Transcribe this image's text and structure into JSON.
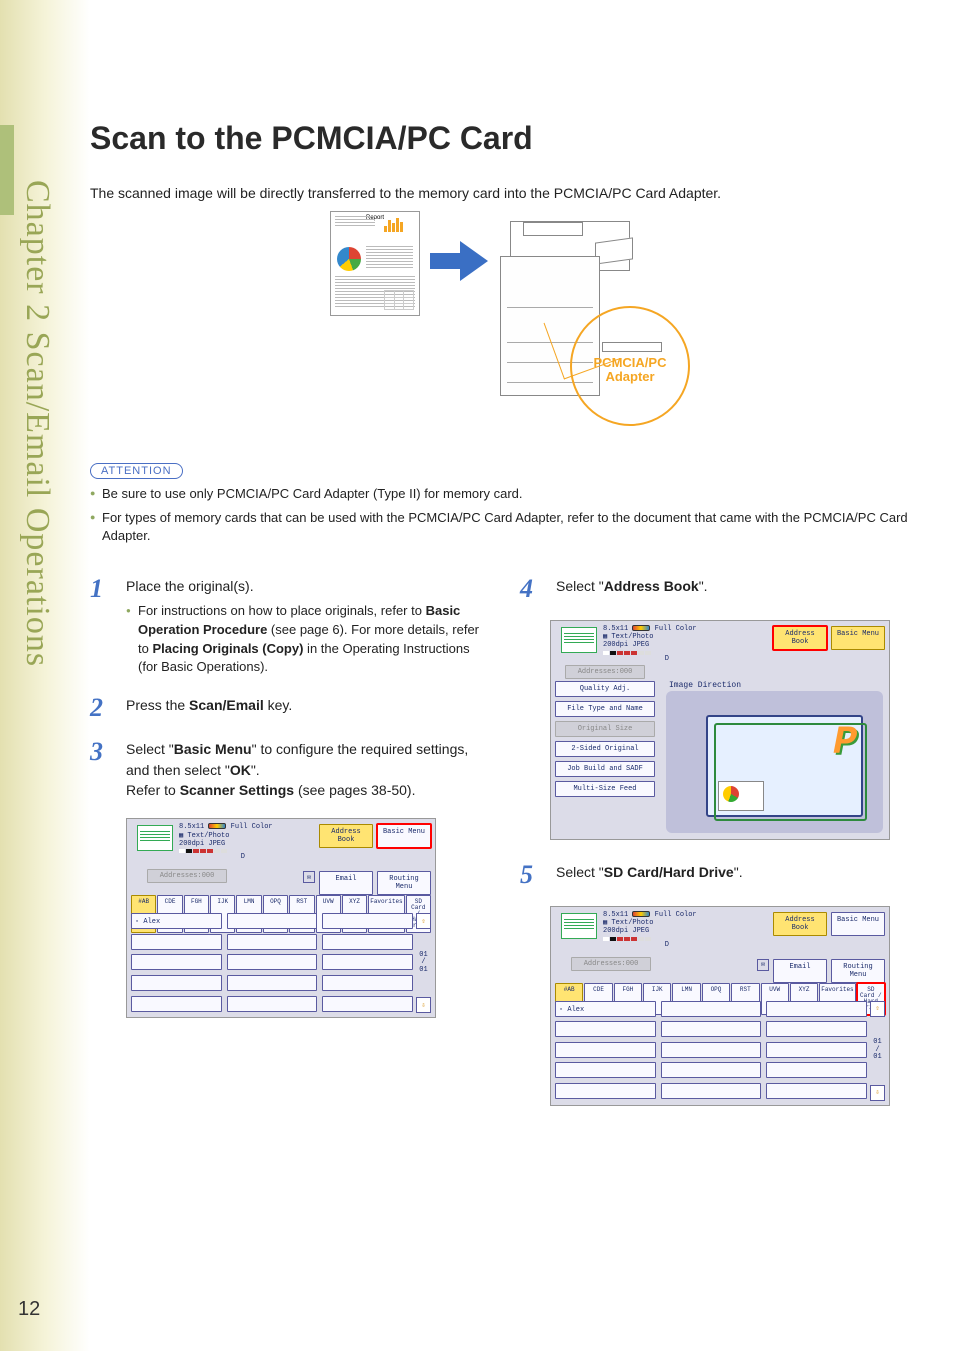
{
  "page_number": "12",
  "side_title": "Chapter 2  Scan/Email Operations",
  "heading": "Scan to the PCMCIA/PC Card",
  "intro": "The scanned image will be directly transferred to the memory card into the PCMCIA/PC Card Adapter.",
  "diagram": {
    "doc_title": "Report",
    "callout": "PCMCIA/PC\nAdapter",
    "arrow_color": "#3a6fc4",
    "circle_color": "#f5a623"
  },
  "attention": {
    "label": "ATTENTION",
    "items": [
      "Be sure to use only PCMCIA/PC Card Adapter (Type II) for memory card.",
      "For types of memory cards that can be used with the PCMCIA/PC Card Adapter, refer to the document that came with the PCMCIA/PC Card Adapter."
    ]
  },
  "steps_left": [
    {
      "n": "1",
      "text_pre": "Place the original(s).",
      "sub": "For instructions on how to place originals, refer to <b>Basic Operation Procedure</b> (see page 6). For more details, refer to <b>Placing Originals (Copy)</b> in the Operating Instructions (for Basic Operations)."
    },
    {
      "n": "2",
      "text_pre": "Press the <b>Scan/Email</b> key."
    },
    {
      "n": "3",
      "text_pre": "Select \"<b>Basic Menu</b>\" to configure the required settings, and then select \"<b>OK</b>\".<br>Refer to <b>Scanner Settings</b> (see pages 38-50)."
    }
  ],
  "steps_right": [
    {
      "n": "4",
      "text_pre": "Select \"<b>Address Book</b>\"."
    },
    {
      "n": "5",
      "text_pre": "Select \"<b>SD Card/Hard Drive</b>\"."
    }
  ],
  "panel_common": {
    "size": "8.5x11",
    "fullcolor": "Full Color",
    "mode": "Text/Photo",
    "res": "200dpi JPEG",
    "id_letter": "D",
    "addresses": "Addresses:000",
    "address_book": "Address Book",
    "basic_menu": "Basic Menu",
    "email": "Email",
    "routing_menu": "Routing Menu",
    "tabs": [
      "#AB",
      "CDE",
      "FGH",
      "IJK",
      "LMN",
      "OPQ",
      "RST",
      "UVW",
      "XYZ",
      "Favorites",
      "SD Card /\nHard Drive"
    ],
    "alex": "Alex",
    "scroll_count_a": "01\n/\n01",
    "scroll_count_b": "01\n/\n01"
  },
  "panelB": {
    "image_direction": "Image Direction",
    "menu": [
      {
        "label": "Quality Adj.",
        "grey": false
      },
      {
        "label": "File Type and Name",
        "grey": false
      },
      {
        "label": "Original Size",
        "grey": true
      },
      {
        "label": "2-Sided Original",
        "grey": false
      },
      {
        "label": "Job Build and SADF",
        "grey": false
      },
      {
        "label": "Multi-Size Feed",
        "grey": false
      }
    ]
  },
  "colors": {
    "step_number": "#4472c4",
    "side_text": "#99a656",
    "bullet": "#8fa860"
  }
}
